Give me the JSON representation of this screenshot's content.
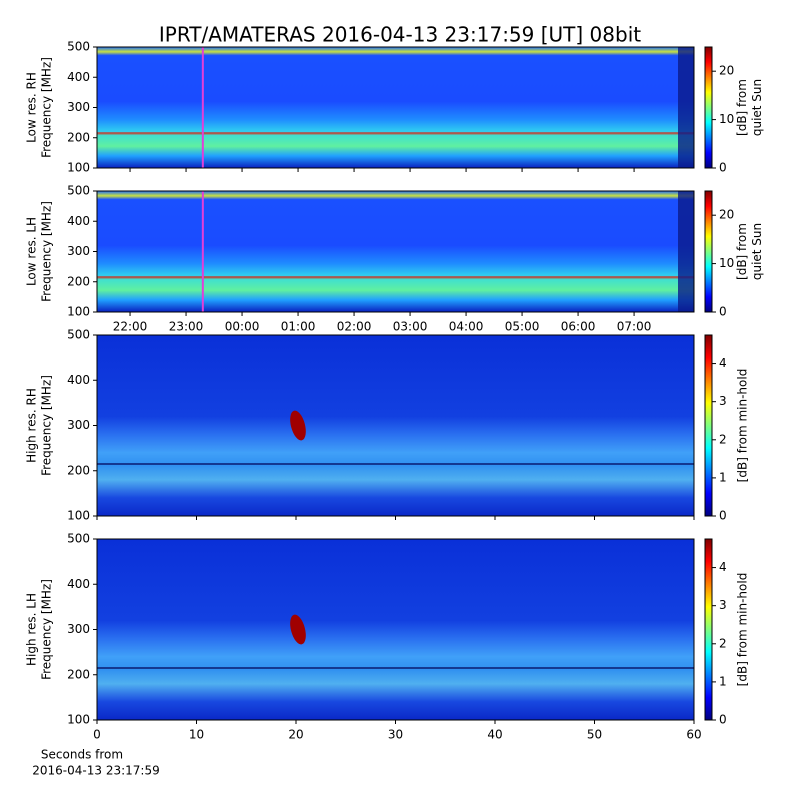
{
  "title": "IPRT/AMATERAS 2016-04-13 23:17:59 [UT]   08bit",
  "footnote": [
    "Seconds from",
    "2016-04-13 23:17:59"
  ],
  "chart_data": [
    {
      "type": "heatmap",
      "ylabel": [
        "Low res. RH",
        "Frequency [MHz]"
      ],
      "ylim": [
        100,
        500
      ],
      "yticks": [
        100,
        200,
        300,
        400,
        500
      ],
      "xlim": [
        21.41,
        32.07
      ],
      "marker_x": 23.2997,
      "marker_color": "#e23fd8",
      "colormap": "jet",
      "clim": [
        0,
        25
      ],
      "cticks": [
        0,
        10,
        20
      ],
      "clabel": [
        "[dB] from",
        "quiet Sun"
      ]
    },
    {
      "type": "heatmap",
      "ylabel": [
        "Low res. LH",
        "Frequency [MHz]"
      ],
      "ylim": [
        100,
        500
      ],
      "yticks": [
        100,
        200,
        300,
        400,
        500
      ],
      "xlim": [
        21.41,
        32.07
      ],
      "marker_x": 23.2997,
      "marker_color": "#e23fd8",
      "xticks": [
        {
          "value": 22,
          "label": "22:00"
        },
        {
          "value": 23,
          "label": "23:00"
        },
        {
          "value": 24,
          "label": "00:00"
        },
        {
          "value": 25,
          "label": "01:00"
        },
        {
          "value": 26,
          "label": "02:00"
        },
        {
          "value": 27,
          "label": "03:00"
        },
        {
          "value": 28,
          "label": "04:00"
        },
        {
          "value": 29,
          "label": "05:00"
        },
        {
          "value": 30,
          "label": "06:00"
        },
        {
          "value": 31,
          "label": "07:00"
        }
      ],
      "colormap": "jet",
      "clim": [
        0,
        25
      ],
      "cticks": [
        0,
        10,
        20
      ],
      "clabel": [
        "[dB] from",
        "quiet Sun"
      ]
    },
    {
      "type": "heatmap",
      "ylabel": [
        "High res. RH",
        "Frequency [MHz]"
      ],
      "ylim": [
        100,
        500
      ],
      "yticks": [
        100,
        200,
        300,
        400,
        500
      ],
      "xlim": [
        0,
        60
      ],
      "colormap": "jet",
      "clim": [
        0,
        4.75
      ],
      "cticks": [
        0,
        1,
        2,
        3,
        4
      ],
      "clabel": [
        "[dB] from min-hold"
      ]
    },
    {
      "type": "heatmap",
      "ylabel": [
        "High res. LH",
        "Frequency [MHz]"
      ],
      "ylim": [
        100,
        500
      ],
      "yticks": [
        100,
        200,
        300,
        400,
        500
      ],
      "xlim": [
        0,
        60
      ],
      "xticks": [
        0,
        10,
        20,
        30,
        40,
        50,
        60
      ],
      "colormap": "jet",
      "clim": [
        0,
        4.75
      ],
      "cticks": [
        0,
        1,
        2,
        3,
        4
      ],
      "clabel": [
        "[dB] from min-hold"
      ]
    }
  ]
}
